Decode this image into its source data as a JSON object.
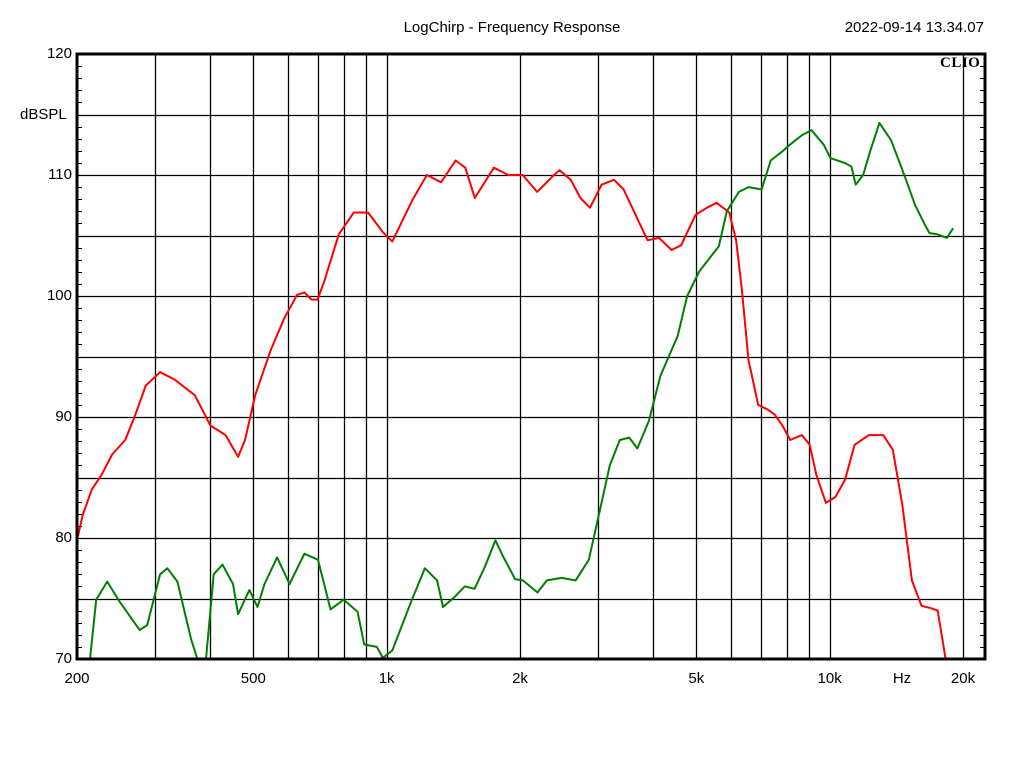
{
  "header": {
    "title": "LogChirp - Frequency Response",
    "timestamp": "2022-09-14 13.34.07",
    "brand": "CLIO"
  },
  "axes": {
    "ylabel": "dBSPL",
    "xunit_label": "Hz",
    "yticks": [
      {
        "value": 120,
        "label": "120"
      },
      {
        "value": 110,
        "label": "110"
      },
      {
        "value": 100,
        "label": "100"
      },
      {
        "value": 90,
        "label": "90"
      },
      {
        "value": 80,
        "label": "80"
      },
      {
        "value": 70,
        "label": "70"
      }
    ],
    "xticks": [
      {
        "value": 200,
        "label": "200"
      },
      {
        "value": 500,
        "label": "500"
      },
      {
        "value": 1000,
        "label": "1k"
      },
      {
        "value": 2000,
        "label": "2k"
      },
      {
        "value": 5000,
        "label": "5k"
      },
      {
        "value": 10000,
        "label": "10k"
      },
      {
        "value": 20000,
        "label": "20k"
      }
    ]
  },
  "colors": {
    "series_red": "#ff0000",
    "series_green": "#008000",
    "grid": "#000000"
  },
  "chart_data": {
    "type": "line",
    "title": "LogChirp - Frequency Response",
    "subtitle": "2022-09-14 13.34.07",
    "xlabel": "Hz",
    "ylabel": "dBSPL",
    "xscale": "log",
    "xlim": [
      200,
      24000
    ],
    "ylim": [
      70,
      120
    ],
    "grid": true,
    "legend": null,
    "series": [
      {
        "name": "red",
        "color": "#ff0000",
        "points": [
          [
            200,
            79.8
          ],
          [
            206,
            81.9
          ],
          [
            216,
            84.0
          ],
          [
            227,
            85.2
          ],
          [
            240,
            86.9
          ],
          [
            257,
            88.1
          ],
          [
            271,
            90.2
          ],
          [
            286,
            92.6
          ],
          [
            308,
            93.7
          ],
          [
            332,
            93.1
          ],
          [
            369,
            91.8
          ],
          [
            400,
            89.3
          ],
          [
            433,
            88.5
          ],
          [
            462,
            86.7
          ],
          [
            479,
            88.1
          ],
          [
            505,
            91.8
          ],
          [
            547,
            95.5
          ],
          [
            588,
            98.2
          ],
          [
            628,
            100.1
          ],
          [
            652,
            100.3
          ],
          [
            676,
            99.7
          ],
          [
            698,
            99.7
          ],
          [
            723,
            101.2
          ],
          [
            780,
            105.1
          ],
          [
            843,
            106.9
          ],
          [
            908,
            106.9
          ],
          [
            979,
            105.3
          ],
          [
            1030,
            104.5
          ],
          [
            1142,
            107.9
          ],
          [
            1233,
            110.0
          ],
          [
            1327,
            109.4
          ],
          [
            1431,
            111.2
          ],
          [
            1505,
            110.6
          ],
          [
            1581,
            108.1
          ],
          [
            1746,
            110.6
          ],
          [
            1882,
            110.0
          ],
          [
            2028,
            110.0
          ],
          [
            2186,
            108.6
          ],
          [
            2357,
            109.8
          ],
          [
            2454,
            110.4
          ],
          [
            2604,
            109.6
          ],
          [
            2738,
            108.1
          ],
          [
            2878,
            107.3
          ],
          [
            3057,
            109.2
          ],
          [
            3260,
            109.6
          ],
          [
            3428,
            108.8
          ],
          [
            3604,
            107.1
          ],
          [
            3882,
            104.6
          ],
          [
            4122,
            104.8
          ],
          [
            4398,
            103.8
          ],
          [
            4622,
            104.2
          ],
          [
            4980,
            106.7
          ],
          [
            5287,
            107.3
          ],
          [
            5557,
            107.7
          ],
          [
            5937,
            106.9
          ],
          [
            6148,
            104.6
          ],
          [
            6337,
            100.5
          ],
          [
            6560,
            94.7
          ],
          [
            6899,
            91.0
          ],
          [
            7255,
            90.6
          ],
          [
            7514,
            90.2
          ],
          [
            7823,
            89.3
          ],
          [
            8145,
            88.1
          ],
          [
            8655,
            88.5
          ],
          [
            9013,
            87.7
          ],
          [
            9334,
            85.2
          ],
          [
            9809,
            82.9
          ],
          [
            10308,
            83.4
          ],
          [
            10832,
            84.8
          ],
          [
            11383,
            87.7
          ],
          [
            12266,
            88.5
          ],
          [
            13217,
            88.5
          ],
          [
            13889,
            87.3
          ],
          [
            14596,
            82.7
          ],
          [
            15338,
            76.5
          ],
          [
            16118,
            74.4
          ],
          [
            16939,
            74.2
          ],
          [
            17536,
            74.0
          ],
          [
            18256,
            70.1
          ]
        ]
      },
      {
        "name": "green",
        "color": "#008000",
        "points": [
          [
            214,
            70.0
          ],
          [
            221,
            74.9
          ],
          [
            234,
            76.4
          ],
          [
            250,
            74.7
          ],
          [
            277,
            72.4
          ],
          [
            288,
            72.8
          ],
          [
            308,
            77.0
          ],
          [
            320,
            77.5
          ],
          [
            337,
            76.4
          ],
          [
            362,
            71.6
          ],
          [
            374,
            70.0
          ],
          [
            391,
            70.0
          ],
          [
            407,
            77.0
          ],
          [
            426,
            77.8
          ],
          [
            450,
            76.2
          ],
          [
            462,
            73.7
          ],
          [
            490,
            75.7
          ],
          [
            511,
            74.3
          ],
          [
            530,
            76.2
          ],
          [
            566,
            78.4
          ],
          [
            604,
            76.2
          ],
          [
            652,
            78.7
          ],
          [
            700,
            78.2
          ],
          [
            747,
            74.1
          ],
          [
            800,
            74.9
          ],
          [
            860,
            73.9
          ],
          [
            890,
            71.2
          ],
          [
            950,
            71.0
          ],
          [
            980,
            70.1
          ],
          [
            1030,
            70.7
          ],
          [
            1140,
            74.9
          ],
          [
            1220,
            77.5
          ],
          [
            1300,
            76.5
          ],
          [
            1340,
            74.3
          ],
          [
            1430,
            75.2
          ],
          [
            1500,
            76.0
          ],
          [
            1580,
            75.8
          ],
          [
            1670,
            77.7
          ],
          [
            1760,
            79.8
          ],
          [
            1830,
            78.5
          ],
          [
            1950,
            76.6
          ],
          [
            2030,
            76.5
          ],
          [
            2190,
            75.5
          ],
          [
            2300,
            76.5
          ],
          [
            2480,
            76.7
          ],
          [
            2670,
            76.5
          ],
          [
            2860,
            78.2
          ],
          [
            3030,
            82.3
          ],
          [
            3190,
            86.0
          ],
          [
            3360,
            88.1
          ],
          [
            3530,
            88.3
          ],
          [
            3680,
            87.4
          ],
          [
            3910,
            89.7
          ],
          [
            4150,
            93.4
          ],
          [
            4540,
            96.7
          ],
          [
            4770,
            100.0
          ],
          [
            5070,
            102.0
          ],
          [
            5400,
            103.3
          ],
          [
            5620,
            104.1
          ],
          [
            5860,
            107.0
          ],
          [
            6240,
            108.6
          ],
          [
            6560,
            109.0
          ],
          [
            7020,
            108.8
          ],
          [
            7360,
            111.2
          ],
          [
            7850,
            112.0
          ],
          [
            8130,
            112.5
          ],
          [
            8660,
            113.3
          ],
          [
            9100,
            113.7
          ],
          [
            9700,
            112.5
          ],
          [
            10040,
            111.4
          ],
          [
            10800,
            111.0
          ],
          [
            11200,
            110.7
          ],
          [
            11450,
            109.2
          ],
          [
            11900,
            110.0
          ],
          [
            12350,
            112.0
          ],
          [
            12950,
            114.3
          ],
          [
            13750,
            112.9
          ],
          [
            14600,
            110.4
          ],
          [
            15600,
            107.5
          ],
          [
            16400,
            105.9
          ],
          [
            16800,
            105.2
          ],
          [
            17500,
            105.1
          ],
          [
            18400,
            104.8
          ],
          [
            19000,
            105.6
          ]
        ]
      }
    ]
  }
}
